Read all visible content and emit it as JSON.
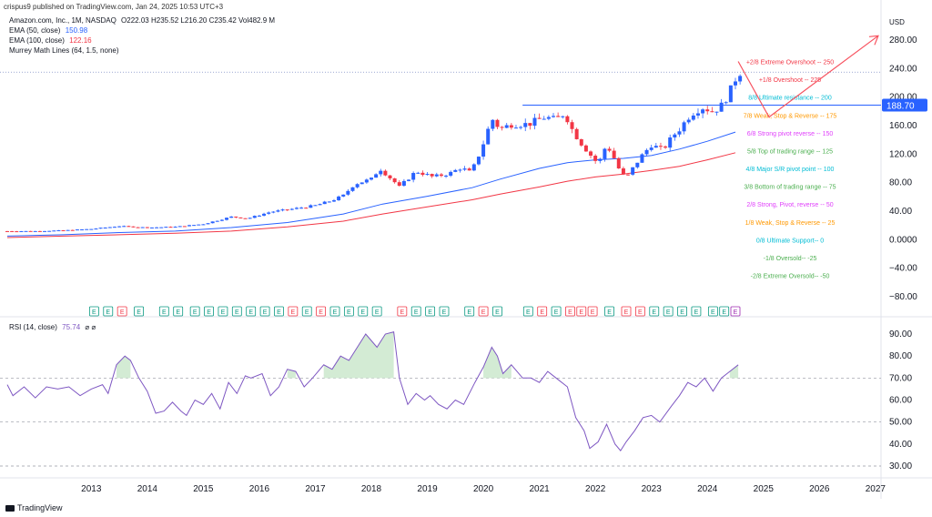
{
  "header": {
    "published": "crispus9 published on TradingView.com, Jan 24, 2025 10:53 UTC+3"
  },
  "legend": {
    "symbol": "Amazon.com, Inc., 1M, NASDAQ",
    "ohlc": "O222.03  H235.52  L216.20  C235.42  Vol482.9 M",
    "ema50": {
      "label": "EMA (50, close)",
      "value": "150.98",
      "color": "#2962ff"
    },
    "ema100": {
      "label": "EMA (100, close)",
      "value": "122.16",
      "color": "#f23645"
    },
    "murrey": {
      "label": "Murrey Math Lines (64, 1.5, none)"
    },
    "rsi": {
      "label": "RSI (14, close)",
      "value": "75.74",
      "extra": "⌀  ⌀",
      "color": "#7e57c2"
    }
  },
  "footer": {
    "brand": "TradingView"
  },
  "chart_data": {
    "type": "candlestick",
    "currency": "USD",
    "price_axis": {
      "ticks": [
        "280.00",
        "240.00",
        "200.00",
        "160.00",
        "120.00",
        "80.00",
        "40.00",
        "0.0000",
        "−40.00",
        "−80.00"
      ],
      "range": [
        -95,
        295
      ]
    },
    "current_price_label": "188.70",
    "rsi_axis": {
      "ticks": [
        "90.00",
        "80.00",
        "70.00",
        "60.00",
        "50.00",
        "40.00",
        "30.00"
      ],
      "range": [
        28,
        95
      ],
      "levels": [
        70,
        50,
        30
      ]
    },
    "x_axis": {
      "labels": [
        "2013",
        "2014",
        "2015",
        "2016",
        "2017",
        "2018",
        "2019",
        "2020",
        "2021",
        "2022",
        "2023",
        "2024",
        "2025",
        "2026",
        "2027"
      ]
    },
    "murrey_lines": [
      {
        "label": "+2/8 Extreme Overshoot --  250",
        "color": "#f23645"
      },
      {
        "label": "+1/8 Overshoot --  225",
        "color": "#f23645"
      },
      {
        "label": "8/8 Ultimate resistance --  200",
        "color": "#00bcd4"
      },
      {
        "label": "7/8 Weak, Stop & Reverse --  175",
        "color": "#ff9800"
      },
      {
        "label": "6/8 Strong pivot reverse --  150",
        "color": "#e040fb"
      },
      {
        "label": "5/8 Top of trading range --  125",
        "color": "#4caf50"
      },
      {
        "label": "4/8 Major S/R pivot point --  100",
        "color": "#00bcd4"
      },
      {
        "label": "3/8 Bottom of trading range --  75",
        "color": "#4caf50"
      },
      {
        "label": "2/8 Strong, Pivot, reverse --  50",
        "color": "#e040fb"
      },
      {
        "label": "1/8 Weak, Stop & Reverse --  25",
        "color": "#ff9800"
      },
      {
        "label": "0/8 Ultimate Support--  0",
        "color": "#00bcd4"
      },
      {
        "label": "-1/8 Oversold--  -25",
        "color": "#4caf50"
      },
      {
        "label": "-2/8 Extreme Oversold--  -50",
        "color": "#4caf50"
      }
    ],
    "earnings_markers": [
      {
        "t": 2013.55,
        "c": "g"
      },
      {
        "t": 2013.8,
        "c": "g"
      },
      {
        "t": 2014.05,
        "c": "r"
      },
      {
        "t": 2014.35,
        "c": "g"
      },
      {
        "t": 2014.8,
        "c": "g"
      },
      {
        "t": 2015.05,
        "c": "g"
      },
      {
        "t": 2015.35,
        "c": "g"
      },
      {
        "t": 2015.6,
        "c": "g"
      },
      {
        "t": 2015.85,
        "c": "g"
      },
      {
        "t": 2016.1,
        "c": "g"
      },
      {
        "t": 2016.35,
        "c": "g"
      },
      {
        "t": 2016.6,
        "c": "g"
      },
      {
        "t": 2016.85,
        "c": "g"
      },
      {
        "t": 2017.1,
        "c": "r"
      },
      {
        "t": 2017.35,
        "c": "g"
      },
      {
        "t": 2017.6,
        "c": "r"
      },
      {
        "t": 2017.85,
        "c": "g"
      },
      {
        "t": 2018.1,
        "c": "g"
      },
      {
        "t": 2018.35,
        "c": "g"
      },
      {
        "t": 2018.6,
        "c": "g"
      },
      {
        "t": 2019.05,
        "c": "r"
      },
      {
        "t": 2019.3,
        "c": "g"
      },
      {
        "t": 2019.55,
        "c": "g"
      },
      {
        "t": 2019.8,
        "c": "g"
      },
      {
        "t": 2020.25,
        "c": "g"
      },
      {
        "t": 2020.5,
        "c": "r"
      },
      {
        "t": 2020.75,
        "c": "g"
      },
      {
        "t": 2021.3,
        "c": "g"
      },
      {
        "t": 2021.55,
        "c": "r"
      },
      {
        "t": 2021.8,
        "c": "g"
      },
      {
        "t": 2022.05,
        "c": "r"
      },
      {
        "t": 2022.25,
        "c": "r"
      },
      {
        "t": 2022.45,
        "c": "r"
      },
      {
        "t": 2022.75,
        "c": "g"
      },
      {
        "t": 2023.05,
        "c": "r"
      },
      {
        "t": 2023.3,
        "c": "r"
      },
      {
        "t": 2023.55,
        "c": "g"
      },
      {
        "t": 2023.8,
        "c": "g"
      },
      {
        "t": 2024.05,
        "c": "g"
      },
      {
        "t": 2024.3,
        "c": "g"
      },
      {
        "t": 2024.6,
        "c": "g"
      },
      {
        "t": 2024.8,
        "c": "g"
      },
      {
        "t": 2025.0,
        "c": "p"
      }
    ],
    "price_path": [
      [
        2012.0,
        12
      ],
      [
        2012.5,
        12
      ],
      [
        2013.0,
        13
      ],
      [
        2013.5,
        15
      ],
      [
        2014.0,
        19
      ],
      [
        2014.5,
        17
      ],
      [
        2015.0,
        18
      ],
      [
        2015.5,
        22
      ],
      [
        2016.0,
        32
      ],
      [
        2016.3,
        30
      ],
      [
        2016.7,
        39
      ],
      [
        2017.0,
        42
      ],
      [
        2017.5,
        48
      ],
      [
        2017.8,
        55
      ],
      [
        2018.0,
        62
      ],
      [
        2018.2,
        78
      ],
      [
        2018.5,
        85
      ],
      [
        2018.65,
        100
      ],
      [
        2018.9,
        82
      ],
      [
        2019.0,
        74
      ],
      [
        2019.3,
        96
      ],
      [
        2019.6,
        88
      ],
      [
        2019.9,
        93
      ],
      [
        2020.1,
        101
      ],
      [
        2020.25,
        95
      ],
      [
        2020.35,
        105
      ],
      [
        2020.5,
        135
      ],
      [
        2020.65,
        170
      ],
      [
        2020.8,
        155
      ],
      [
        2021.0,
        162
      ],
      [
        2021.3,
        162
      ],
      [
        2021.6,
        172
      ],
      [
        2021.8,
        168
      ],
      [
        2021.95,
        178
      ],
      [
        2022.1,
        152
      ],
      [
        2022.25,
        135
      ],
      [
        2022.4,
        120
      ],
      [
        2022.55,
        106
      ],
      [
        2022.7,
        134
      ],
      [
        2022.85,
        112
      ],
      [
        2022.95,
        94
      ],
      [
        2023.05,
        86
      ],
      [
        2023.2,
        104
      ],
      [
        2023.35,
        120
      ],
      [
        2023.5,
        133
      ],
      [
        2023.7,
        126
      ],
      [
        2023.9,
        147
      ],
      [
        2024.0,
        155
      ],
      [
        2024.2,
        176
      ],
      [
        2024.4,
        186
      ],
      [
        2024.6,
        180
      ],
      [
        2024.75,
        188
      ],
      [
        2024.9,
        207
      ],
      [
        2025.05,
        235
      ]
    ],
    "ema50_path": [
      [
        2012.0,
        5
      ],
      [
        2013.0,
        7
      ],
      [
        2014.0,
        10
      ],
      [
        2015.0,
        12
      ],
      [
        2016.0,
        17
      ],
      [
        2017.0,
        24
      ],
      [
        2018.0,
        36
      ],
      [
        2018.7,
        50
      ],
      [
        2019.5,
        61
      ],
      [
        2020.3,
        73
      ],
      [
        2020.8,
        85
      ],
      [
        2021.5,
        100
      ],
      [
        2022.0,
        108
      ],
      [
        2022.5,
        112
      ],
      [
        2023.0,
        114
      ],
      [
        2023.5,
        118
      ],
      [
        2024.0,
        127
      ],
      [
        2024.5,
        138
      ],
      [
        2025.0,
        151
      ]
    ],
    "ema100_path": [
      [
        2012.0,
        3
      ],
      [
        2013.0,
        5
      ],
      [
        2014.0,
        7
      ],
      [
        2015.0,
        9
      ],
      [
        2016.0,
        12
      ],
      [
        2017.0,
        18
      ],
      [
        2018.0,
        26
      ],
      [
        2018.7,
        36
      ],
      [
        2019.5,
        46
      ],
      [
        2020.3,
        56
      ],
      [
        2020.8,
        64
      ],
      [
        2021.5,
        74
      ],
      [
        2022.0,
        82
      ],
      [
        2022.5,
        88
      ],
      [
        2023.0,
        92
      ],
      [
        2023.5,
        97
      ],
      [
        2024.0,
        103
      ],
      [
        2024.5,
        112
      ],
      [
        2025.0,
        122
      ]
    ],
    "rsi_path": [
      [
        2012.0,
        67
      ],
      [
        2012.1,
        62
      ],
      [
        2012.3,
        66
      ],
      [
        2012.5,
        61
      ],
      [
        2012.7,
        66
      ],
      [
        2012.9,
        65
      ],
      [
        2013.1,
        66
      ],
      [
        2013.3,
        62
      ],
      [
        2013.5,
        65
      ],
      [
        2013.7,
        67
      ],
      [
        2013.8,
        63
      ],
      [
        2013.95,
        76
      ],
      [
        2014.1,
        80
      ],
      [
        2014.2,
        78
      ],
      [
        2014.35,
        70
      ],
      [
        2014.5,
        64
      ],
      [
        2014.65,
        54
      ],
      [
        2014.8,
        55
      ],
      [
        2014.95,
        59
      ],
      [
        2015.1,
        55
      ],
      [
        2015.2,
        53
      ],
      [
        2015.35,
        60
      ],
      [
        2015.5,
        58
      ],
      [
        2015.65,
        63
      ],
      [
        2015.8,
        56
      ],
      [
        2015.95,
        68
      ],
      [
        2016.1,
        63
      ],
      [
        2016.25,
        71
      ],
      [
        2016.35,
        70
      ],
      [
        2016.55,
        72
      ],
      [
        2016.7,
        62
      ],
      [
        2016.85,
        66
      ],
      [
        2017.0,
        74
      ],
      [
        2017.15,
        73
      ],
      [
        2017.3,
        66
      ],
      [
        2017.45,
        70
      ],
      [
        2017.65,
        76
      ],
      [
        2017.8,
        74
      ],
      [
        2017.95,
        80
      ],
      [
        2018.1,
        78
      ],
      [
        2018.25,
        84
      ],
      [
        2018.4,
        90
      ],
      [
        2018.6,
        84
      ],
      [
        2018.75,
        90
      ],
      [
        2018.9,
        91
      ],
      [
        2019.0,
        70
      ],
      [
        2019.15,
        58
      ],
      [
        2019.3,
        63
      ],
      [
        2019.45,
        60
      ],
      [
        2019.55,
        62
      ],
      [
        2019.7,
        58
      ],
      [
        2019.85,
        56
      ],
      [
        2020.0,
        60
      ],
      [
        2020.15,
        58
      ],
      [
        2020.35,
        68
      ],
      [
        2020.5,
        75
      ],
      [
        2020.65,
        84
      ],
      [
        2020.75,
        80
      ],
      [
        2020.85,
        72
      ],
      [
        2021.0,
        76
      ],
      [
        2021.2,
        70
      ],
      [
        2021.35,
        70
      ],
      [
        2021.5,
        68
      ],
      [
        2021.65,
        73
      ],
      [
        2021.85,
        69
      ],
      [
        2022.0,
        66
      ],
      [
        2022.15,
        52
      ],
      [
        2022.3,
        46
      ],
      [
        2022.4,
        38
      ],
      [
        2022.55,
        41
      ],
      [
        2022.7,
        49
      ],
      [
        2022.85,
        40
      ],
      [
        2022.95,
        37
      ],
      [
        2023.05,
        41
      ],
      [
        2023.2,
        46
      ],
      [
        2023.35,
        52
      ],
      [
        2023.5,
        53
      ],
      [
        2023.65,
        50
      ],
      [
        2023.85,
        57
      ],
      [
        2024.0,
        62
      ],
      [
        2024.15,
        68
      ],
      [
        2024.3,
        66
      ],
      [
        2024.45,
        70
      ],
      [
        2024.6,
        64
      ],
      [
        2024.75,
        70
      ],
      [
        2024.9,
        73
      ],
      [
        2025.05,
        76
      ]
    ]
  }
}
